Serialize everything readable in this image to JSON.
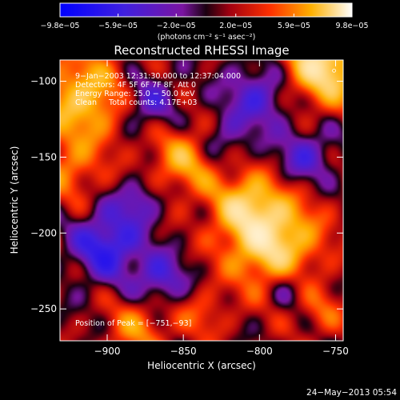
{
  "chart_data": {
    "type": "heatmap",
    "title": "Reconstructed RHESSI Image",
    "xlabel": "Heliocentric X (arcsec)",
    "ylabel": "Heliocentric Y (arcsec)",
    "xlim": [
      -931,
      -745
    ],
    "ylim": [
      -271,
      -86
    ],
    "x_ticks": [
      -900,
      -850,
      -800,
      -750
    ],
    "x_tick_labels": [
      "−900",
      "−850",
      "−800",
      "−750"
    ],
    "y_ticks": [
      -100,
      -150,
      -200,
      -250
    ],
    "y_tick_labels": [
      "−100",
      "−150",
      "−200",
      "−250"
    ],
    "colorbar": {
      "ticks": [
        -9.8e-05,
        -5.9e-05,
        -2e-05,
        2e-05,
        5.9e-05,
        9.8e-05
      ],
      "tick_labels": [
        "−9.8e−05",
        "−5.9e−05",
        "−2.0e−05",
        "2.0e−05",
        "5.9e−05",
        "9.8e−05"
      ],
      "range": [
        -9.8e-05,
        9.8e-05
      ],
      "unit_label": "(photons cm⁻² s⁻¹ asec⁻²)"
    },
    "annotations": [
      "9−Jan−2003 12:31:30.000 to 12:37:04.000",
      "Detectors: 4F 5F 6F 7F 8F, Att 0",
      "Energy Range: 25.0 − 50.0 keV",
      "Clean     Total counts: 4.17E+03",
      "Position of Peak = [−751,−93]"
    ],
    "peak_position": [
      -751,
      -93
    ],
    "sources": [
      {
        "x": -758,
        "y": -90,
        "sigma": 18,
        "amp": 1.0
      },
      {
        "x": -792,
        "y": -205,
        "sigma": 22,
        "amp": 0.95
      },
      {
        "x": -848,
        "y": -151,
        "sigma": 16,
        "amp": 0.6
      },
      {
        "x": -915,
        "y": -112,
        "sigma": 22,
        "amp": 0.75
      },
      {
        "x": -810,
        "y": -180,
        "sigma": 15,
        "amp": 0.55
      },
      {
        "x": -925,
        "y": -160,
        "sigma": 14,
        "amp": 0.4
      },
      {
        "x": -880,
        "y": -262,
        "sigma": 14,
        "amp": 0.45
      },
      {
        "x": -838,
        "y": -255,
        "sigma": 12,
        "amp": 0.3
      },
      {
        "x": -760,
        "y": -252,
        "sigma": 12,
        "amp": 0.3
      },
      {
        "x": -900,
        "y": -208,
        "sigma": 15,
        "amp": -0.7
      },
      {
        "x": -865,
        "y": -230,
        "sigma": 12,
        "amp": -0.5
      },
      {
        "x": -875,
        "y": -115,
        "sigma": 14,
        "amp": -0.45
      },
      {
        "x": -800,
        "y": -110,
        "sigma": 15,
        "amp": -0.5
      },
      {
        "x": -770,
        "y": -150,
        "sigma": 13,
        "amp": -0.45
      },
      {
        "x": -825,
        "y": -140,
        "sigma": 12,
        "amp": -0.35
      },
      {
        "x": -880,
        "y": -180,
        "sigma": 10,
        "amp": -0.4
      },
      {
        "x": -780,
        "y": -235,
        "sigma": 10,
        "amp": -0.35
      }
    ]
  },
  "timestamp": "24−May−2013 05:54"
}
